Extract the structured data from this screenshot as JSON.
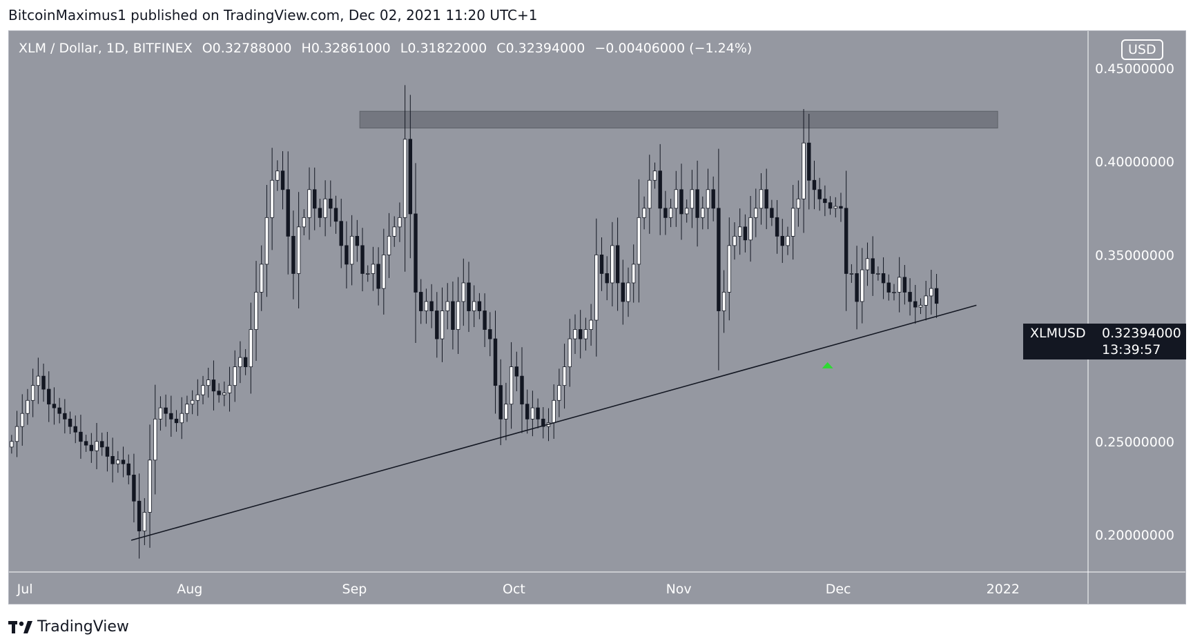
{
  "header": {
    "published_by": "BitcoinMaximus1 published on TradingView.com, Dec 02, 2021 11:20 UTC+1"
  },
  "legend": {
    "symbol_line": "XLM / Dollar, 1D, BITFINEX",
    "o_label": "O",
    "open": "0.32788000",
    "h_label": "H",
    "high": "0.32861000",
    "l_label": "L",
    "low": "0.31822000",
    "c_label": "C",
    "close": "0.32394000",
    "change": "−0.00406000 (−1.24%)"
  },
  "currency_badge": "USD",
  "price_tag": {
    "symbol": "XLMUSD",
    "price": "0.32394000",
    "countdown": "13:39:57"
  },
  "footer": {
    "brand": "TradingView"
  },
  "colors": {
    "background": "#9598a1",
    "up_candle": "#ffffff",
    "down_candle": "#131722",
    "wick": "#131722",
    "resistance_zone": "#6e717a",
    "trendline": "#131722",
    "marker": "#2eda33"
  },
  "chart_data": {
    "type": "candlestick",
    "ylim": [
      0.18,
      0.47
    ],
    "y_ticks": [
      "0.45000000",
      "0.40000000",
      "0.35000000",
      "0.30000000",
      "0.25000000",
      "0.20000000"
    ],
    "y_tick_values": [
      0.45,
      0.4,
      0.35,
      0.3,
      0.25,
      0.2
    ],
    "x_start": "2021-06-28",
    "x_end": "2022-01-17",
    "x_ticks": [
      {
        "label": "Jul",
        "date": "2021-07-01"
      },
      {
        "label": "Aug",
        "date": "2021-08-01"
      },
      {
        "label": "Sep",
        "date": "2021-09-01"
      },
      {
        "label": "Oct",
        "date": "2021-10-01"
      },
      {
        "label": "Nov",
        "date": "2021-11-01"
      },
      {
        "label": "Dec",
        "date": "2021-12-01"
      },
      {
        "label": "2022",
        "date": "2022-01-01"
      }
    ],
    "close_series": [
      0.25,
      0.258,
      0.265,
      0.272,
      0.28,
      0.285,
      0.278,
      0.27,
      0.268,
      0.265,
      0.262,
      0.258,
      0.255,
      0.25,
      0.248,
      0.245,
      0.25,
      0.247,
      0.242,
      0.238,
      0.24,
      0.238,
      0.232,
      0.218,
      0.202,
      0.212,
      0.24,
      0.262,
      0.268,
      0.265,
      0.262,
      0.26,
      0.265,
      0.27,
      0.272,
      0.275,
      0.28,
      0.283,
      0.277,
      0.275,
      0.276,
      0.28,
      0.29,
      0.295,
      0.29,
      0.31,
      0.33,
      0.345,
      0.37,
      0.39,
      0.395,
      0.385,
      0.36,
      0.34,
      0.365,
      0.37,
      0.385,
      0.375,
      0.37,
      0.38,
      0.375,
      0.368,
      0.355,
      0.345,
      0.36,
      0.355,
      0.34,
      0.34,
      0.345,
      0.332,
      0.35,
      0.36,
      0.365,
      0.37,
      0.412,
      0.372,
      0.33,
      0.32,
      0.325,
      0.32,
      0.305,
      0.32,
      0.325,
      0.31,
      0.325,
      0.335,
      0.32,
      0.325,
      0.32,
      0.31,
      0.305,
      0.28,
      0.262,
      0.27,
      0.29,
      0.285,
      0.27,
      0.262,
      0.268,
      0.262,
      0.258,
      0.26,
      0.272,
      0.28,
      0.29,
      0.305,
      0.31,
      0.305,
      0.31,
      0.315,
      0.35,
      0.34,
      0.335,
      0.355,
      0.335,
      0.325,
      0.335,
      0.345,
      0.37,
      0.375,
      0.39,
      0.395,
      0.375,
      0.37,
      0.375,
      0.385,
      0.372,
      0.375,
      0.385,
      0.37,
      0.375,
      0.385,
      0.375,
      0.32,
      0.33,
      0.355,
      0.36,
      0.365,
      0.358,
      0.37,
      0.375,
      0.385,
      0.375,
      0.37,
      0.36,
      0.355,
      0.36,
      0.375,
      0.38,
      0.41,
      0.39,
      0.385,
      0.38,
      0.378,
      0.375,
      0.376,
      0.375,
      0.34,
      0.34,
      0.325,
      0.342,
      0.348,
      0.34,
      0.34,
      0.335,
      0.33,
      0.33,
      0.338,
      0.33,
      0.325,
      0.322,
      0.323,
      0.328,
      0.332,
      0.324
    ],
    "last_close": 0.32394,
    "resistance_zone": {
      "from": "2021-09-02",
      "to": "2021-12-31",
      "low": 0.418,
      "high": 0.427
    },
    "trendline": {
      "from_date": "2021-07-21",
      "from_price": 0.197,
      "to_date": "2021-12-27",
      "to_price": 0.323
    },
    "marker": {
      "date": "2021-11-29",
      "price": 0.291
    }
  }
}
